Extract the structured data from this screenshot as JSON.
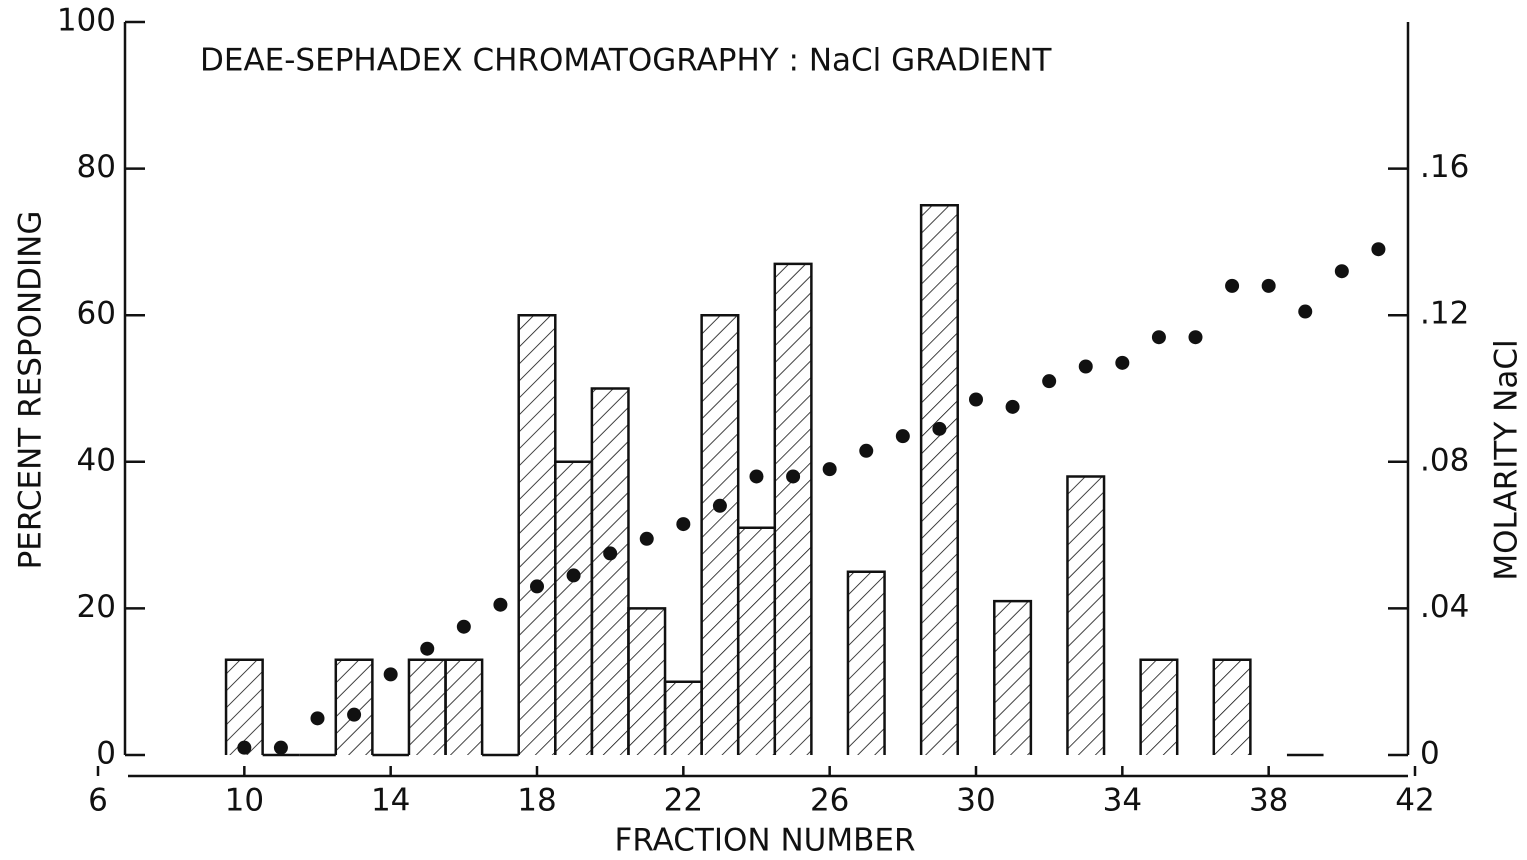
{
  "chart_data": {
    "type": "bar",
    "title": "DEAE-SEPHADEX CHROMATOGRAPHY : NaCl GRADIENT",
    "x_label": "FRACTION NUMBER",
    "y_label": "PERCENT RESPONDING",
    "y2_label": "MOLARITY NaCl",
    "x": [
      10,
      11,
      12,
      13,
      14,
      15,
      16,
      17,
      18,
      19,
      20,
      21,
      22,
      23,
      24,
      25,
      26,
      27,
      28,
      29,
      30,
      31,
      32,
      33,
      34,
      35,
      36,
      37,
      38,
      39,
      40,
      41
    ],
    "series": [
      {
        "type": "bar",
        "color": "#111111",
        "values": [
          13,
          0,
          0,
          13,
          0,
          13,
          13,
          0,
          60,
          40,
          50,
          20,
          10,
          60,
          31,
          67,
          null,
          25,
          null,
          75,
          null,
          21,
          null,
          38,
          null,
          13,
          null,
          13,
          null,
          0,
          null,
          null
        ]
      },
      {
        "type": "scatter",
        "axis": "y2",
        "color": "#111111",
        "values": [
          0.002,
          0.002,
          0.01,
          0.011,
          0.022,
          0.029,
          0.035,
          0.041,
          0.046,
          0.049,
          0.055,
          0.059,
          0.063,
          0.068,
          0.076,
          0.076,
          0.078,
          0.083,
          0.087,
          0.089,
          0.097,
          0.095,
          0.102,
          0.106,
          0.107,
          0.114,
          0.114,
          0.128,
          0.128,
          0.121,
          0.132,
          0.138
        ]
      }
    ],
    "xlim": [
      6,
      42
    ],
    "xticks": [
      6,
      10,
      14,
      18,
      22,
      26,
      30,
      34,
      38,
      42
    ],
    "ylim": [
      0,
      100
    ],
    "yticks": [
      0,
      20,
      40,
      60,
      80,
      100
    ],
    "y2lim": [
      0,
      0.2
    ],
    "y2ticks": [
      0,
      {
        "value": 0.04,
        "label": ".04"
      },
      {
        "value": 0.08,
        "label": ".08"
      },
      {
        "value": 0.12,
        "label": ".12"
      },
      {
        "value": 0.16,
        "label": ".16"
      }
    ]
  }
}
